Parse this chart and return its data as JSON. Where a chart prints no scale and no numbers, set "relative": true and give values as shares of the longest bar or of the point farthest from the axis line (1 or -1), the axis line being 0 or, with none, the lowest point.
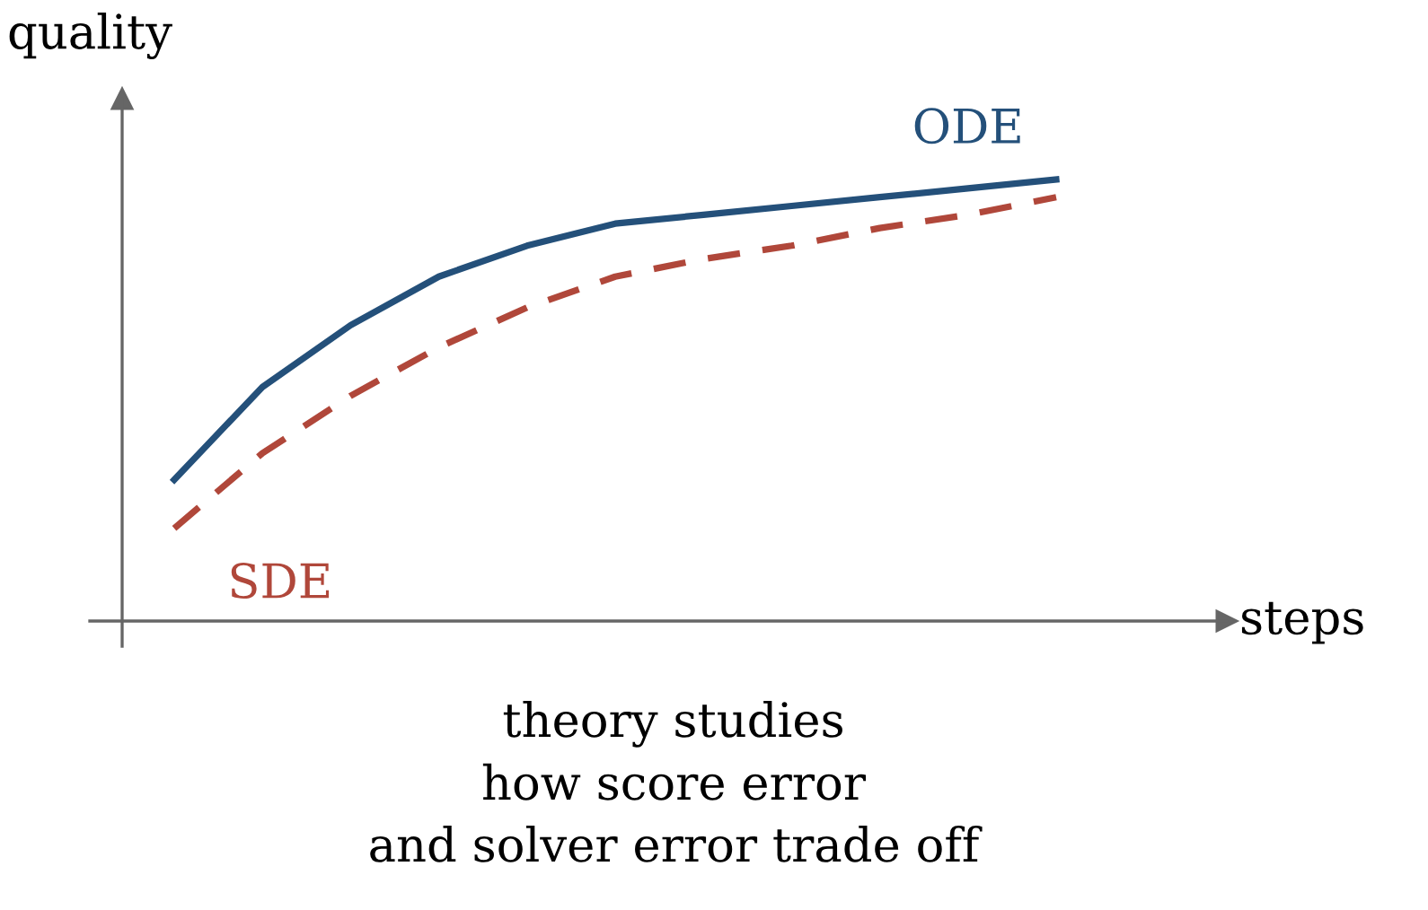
{
  "chart_data": {
    "type": "line",
    "relative": true,
    "xlabel": "steps",
    "ylabel": "quality",
    "legend": false,
    "categories": [
      null,
      null,
      null,
      null,
      null,
      null,
      null,
      null,
      null,
      null,
      null
    ],
    "series": [
      {
        "name": "ODE",
        "color": "#24507a",
        "line_style": "solid",
        "values": [
          0.32,
          0.53,
          0.67,
          0.78,
          0.85,
          0.9,
          0.92,
          0.94,
          0.96,
          0.98,
          1
        ]
      },
      {
        "name": "SDE",
        "color": "#b0473a",
        "line_style": "dashed",
        "values": [
          0.21,
          0.38,
          0.51,
          0.62,
          0.71,
          0.78,
          0.82,
          0.85,
          0.89,
          0.92,
          0.96
        ]
      }
    ],
    "annotations": [
      "theory studies\nhow score error\nand solver error trade off"
    ]
  }
}
